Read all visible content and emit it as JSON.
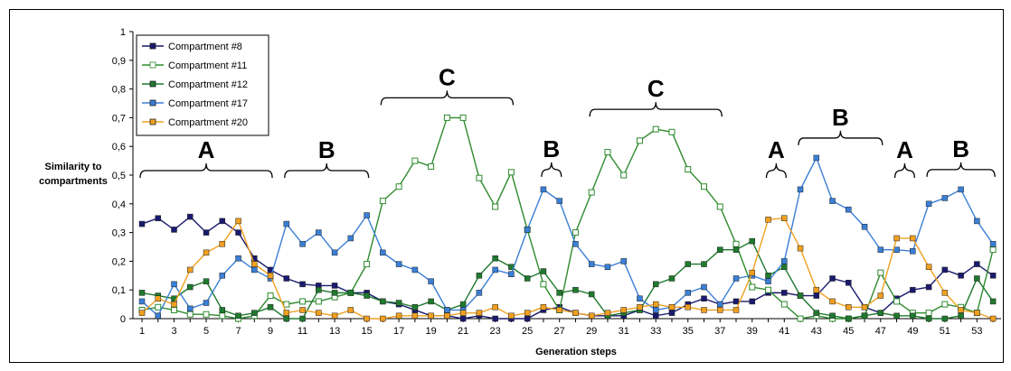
{
  "chart_data": {
    "type": "line",
    "title": "",
    "xlabel": "Generation steps",
    "ylabel": "Similarity to compartments",
    "ylim": [
      0,
      1
    ],
    "y_ticks": [
      "0",
      "0,1",
      "0,2",
      "0,3",
      "0,4",
      "0,5",
      "0,6",
      "0,7",
      "0,8",
      "0,9",
      "1"
    ],
    "x": [
      1,
      2,
      3,
      4,
      5,
      6,
      7,
      8,
      9,
      10,
      11,
      12,
      13,
      14,
      15,
      16,
      17,
      18,
      19,
      20,
      21,
      22,
      23,
      24,
      25,
      26,
      27,
      28,
      29,
      30,
      31,
      32,
      33,
      34,
      35,
      36,
      37,
      38,
      39,
      40,
      41,
      42,
      43,
      44,
      45,
      46,
      47,
      48,
      49,
      50,
      51,
      52,
      53,
      54
    ],
    "x_tick_labels": [
      "1",
      "3",
      "5",
      "7",
      "9",
      "11",
      "13",
      "15",
      "17",
      "19",
      "21",
      "23",
      "25",
      "27",
      "29",
      "31",
      "33",
      "35",
      "37",
      "39",
      "41",
      "43",
      "45",
      "47",
      "49",
      "51",
      "53"
    ],
    "grid": false,
    "legend_placement": "top-left",
    "series": [
      {
        "name": "Compartment #8",
        "color": "#1a1a6e",
        "marker": "filled",
        "values": [
          0.33,
          0.35,
          0.31,
          0.355,
          0.3,
          0.34,
          0.3,
          0.21,
          0.17,
          0.14,
          0.12,
          0.115,
          0.115,
          0.09,
          0.09,
          0.06,
          0.05,
          0.03,
          0.01,
          0.01,
          0.0,
          0.01,
          0.0,
          0.0,
          0.0,
          0.03,
          0.04,
          0.02,
          0.01,
          0.01,
          0.01,
          0.03,
          0.01,
          0.02,
          0.05,
          0.07,
          0.05,
          0.06,
          0.06,
          0.09,
          0.09,
          0.08,
          0.08,
          0.14,
          0.125,
          0.04,
          0.02,
          0.07,
          0.1,
          0.11,
          0.17,
          0.15,
          0.19,
          0.15
        ]
      },
      {
        "name": "Compartment #11",
        "color": "#2e8b2e",
        "marker": "hollow",
        "values": [
          0.03,
          0.04,
          0.03,
          0.015,
          0.015,
          0.01,
          0.0,
          0.01,
          0.08,
          0.05,
          0.06,
          0.06,
          0.075,
          0.09,
          0.19,
          0.41,
          0.46,
          0.55,
          0.53,
          0.7,
          0.7,
          0.49,
          0.39,
          0.51,
          0.31,
          0.12,
          0.03,
          0.3,
          0.44,
          0.58,
          0.5,
          0.62,
          0.66,
          0.65,
          0.52,
          0.46,
          0.39,
          0.26,
          0.11,
          0.1,
          0.05,
          0.0,
          0.01,
          0.0,
          0.0,
          0.01,
          0.16,
          0.06,
          0.02,
          0.02,
          0.05,
          0.04,
          0.02,
          0.24
        ]
      },
      {
        "name": "Compartment #12",
        "color": "#1f7a2e",
        "marker": "filled",
        "values": [
          0.09,
          0.08,
          0.07,
          0.11,
          0.13,
          0.03,
          0.01,
          0.02,
          0.04,
          0.0,
          0.0,
          0.1,
          0.09,
          0.09,
          0.08,
          0.06,
          0.055,
          0.04,
          0.06,
          0.03,
          0.05,
          0.15,
          0.21,
          0.18,
          0.14,
          0.165,
          0.09,
          0.1,
          0.085,
          0.01,
          0.02,
          0.03,
          0.12,
          0.14,
          0.19,
          0.19,
          0.24,
          0.24,
          0.27,
          0.15,
          0.18,
          0.08,
          0.02,
          0.01,
          0.0,
          0.01,
          0.02,
          0.01,
          0.01,
          0.0,
          0.0,
          0.01,
          0.14,
          0.06
        ]
      },
      {
        "name": "Compartment #17",
        "color": "#3a7fd6",
        "marker": "filled",
        "values": [
          0.06,
          0.01,
          0.12,
          0.035,
          0.055,
          0.15,
          0.21,
          0.17,
          0.14,
          0.33,
          0.26,
          0.3,
          0.23,
          0.28,
          0.36,
          0.23,
          0.19,
          0.17,
          0.13,
          0.03,
          0.03,
          0.09,
          0.17,
          0.155,
          0.31,
          0.45,
          0.41,
          0.26,
          0.19,
          0.18,
          0.2,
          0.07,
          0.03,
          0.04,
          0.09,
          0.11,
          0.05,
          0.14,
          0.15,
          0.13,
          0.2,
          0.45,
          0.56,
          0.41,
          0.38,
          0.32,
          0.24,
          0.24,
          0.235,
          0.4,
          0.42,
          0.45,
          0.34,
          0.26
        ]
      },
      {
        "name": "Compartment #20",
        "color": "#f0a020",
        "marker": "filled",
        "values": [
          0.02,
          0.07,
          0.05,
          0.17,
          0.23,
          0.26,
          0.34,
          0.19,
          0.15,
          0.02,
          0.03,
          0.02,
          0.01,
          0.03,
          0.0,
          0.0,
          0.01,
          0.01,
          0.01,
          0.01,
          0.02,
          0.02,
          0.04,
          0.01,
          0.02,
          0.04,
          0.03,
          0.02,
          0.01,
          0.02,
          0.03,
          0.04,
          0.05,
          0.04,
          0.04,
          0.03,
          0.03,
          0.03,
          0.16,
          0.345,
          0.35,
          0.245,
          0.1,
          0.06,
          0.04,
          0.04,
          0.08,
          0.28,
          0.28,
          0.18,
          0.09,
          0.03,
          0.02,
          0.0
        ]
      }
    ],
    "annotations": [
      {
        "text": "A",
        "from": 1,
        "to": 9
      },
      {
        "text": "B",
        "from": 10,
        "to": 15
      },
      {
        "text": "C",
        "from": 16,
        "to": 24
      },
      {
        "text": "B",
        "from": 26,
        "to": 27
      },
      {
        "text": "C",
        "from": 29,
        "to": 37
      },
      {
        "text": "A",
        "from": 40,
        "to": 41
      },
      {
        "text": "B",
        "from": 42,
        "to": 47
      },
      {
        "text": "A",
        "from": 48,
        "to": 49
      },
      {
        "text": "B",
        "from": 50,
        "to": 54
      }
    ]
  }
}
